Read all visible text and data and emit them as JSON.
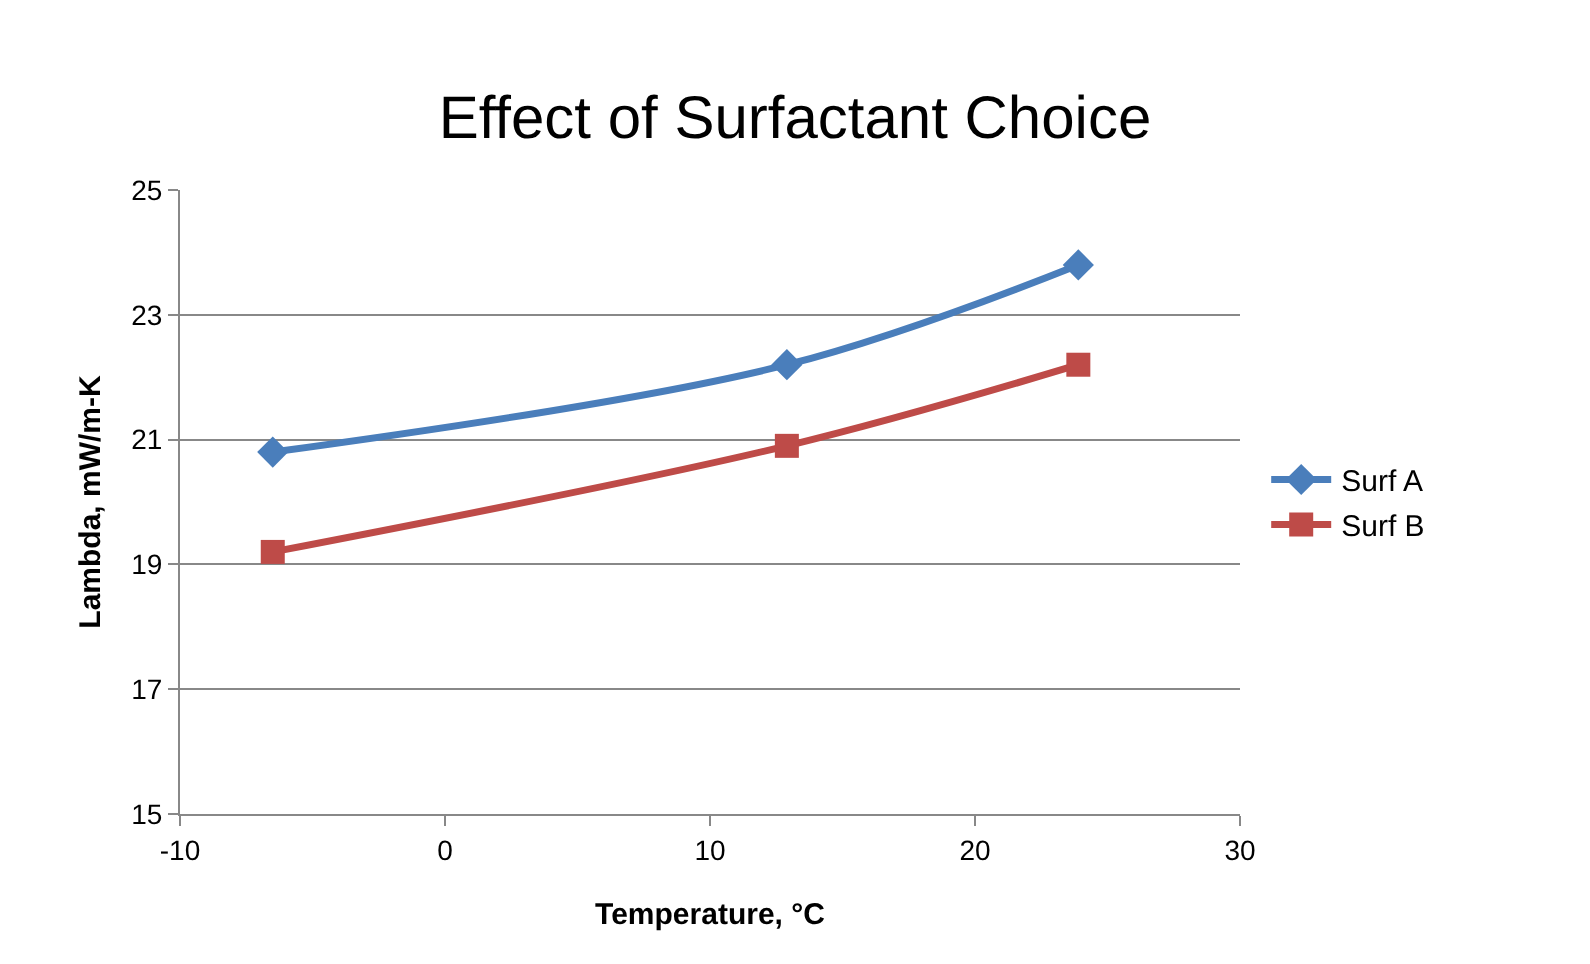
{
  "chart_data": {
    "type": "line",
    "title": "Effect of Surfactant Choice",
    "xlabel": "Temperature, °C",
    "ylabel": "Lambda, mW/m-K",
    "x": [
      -6.5,
      12.9,
      23.9
    ],
    "series": [
      {
        "name": "Surf A",
        "color": "#4a7ebb",
        "marker": "diamond",
        "values": [
          20.8,
          22.2,
          23.8
        ]
      },
      {
        "name": "Surf B",
        "color": "#be4b48",
        "marker": "square",
        "values": [
          19.2,
          20.9,
          22.2
        ]
      }
    ],
    "xlim": [
      -10,
      30
    ],
    "xticks": [
      -10,
      0,
      10,
      20,
      30
    ],
    "ylim": [
      15,
      25
    ],
    "yticks": [
      15,
      17,
      19,
      21,
      23,
      25
    ],
    "grid": "y",
    "legend": "right",
    "line_style": "solid"
  }
}
